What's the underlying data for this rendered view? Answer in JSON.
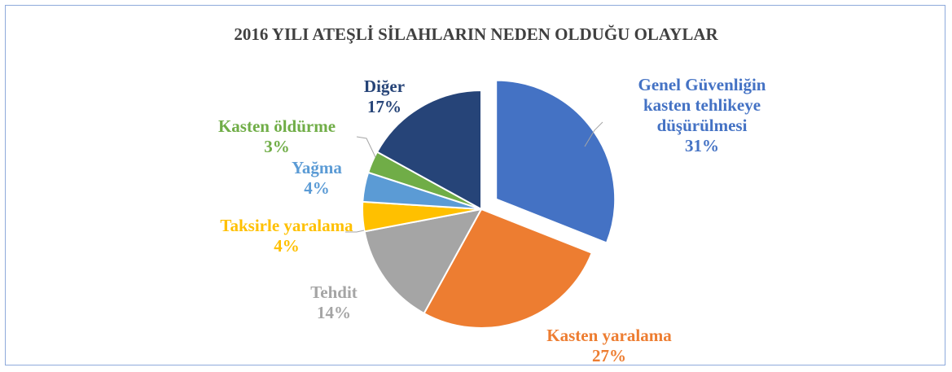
{
  "chart_data": {
    "type": "pie",
    "title": "2016 YILI ATEŞLİ SİLAHLARIN NEDEN OLDUĞU OLAYLAR",
    "categories": [
      "Genel Güvenliğin kasten tehlikeye düşürülmesi",
      "Kasten yaralama",
      "Tehdit",
      "Taksirle yaralama",
      "Yağma",
      "Kasten öldürme",
      "Diğer"
    ],
    "values": [
      31,
      27,
      14,
      4,
      4,
      3,
      17
    ],
    "value_labels": [
      "31%",
      "27%",
      "14%",
      "4%",
      "4%",
      "3%",
      "17%"
    ],
    "colors": [
      "#4472c4",
      "#ed7d31",
      "#a5a5a5",
      "#ffc000",
      "#5b9bd5",
      "#70ad47",
      "#264478"
    ],
    "exploded": [
      0
    ]
  }
}
